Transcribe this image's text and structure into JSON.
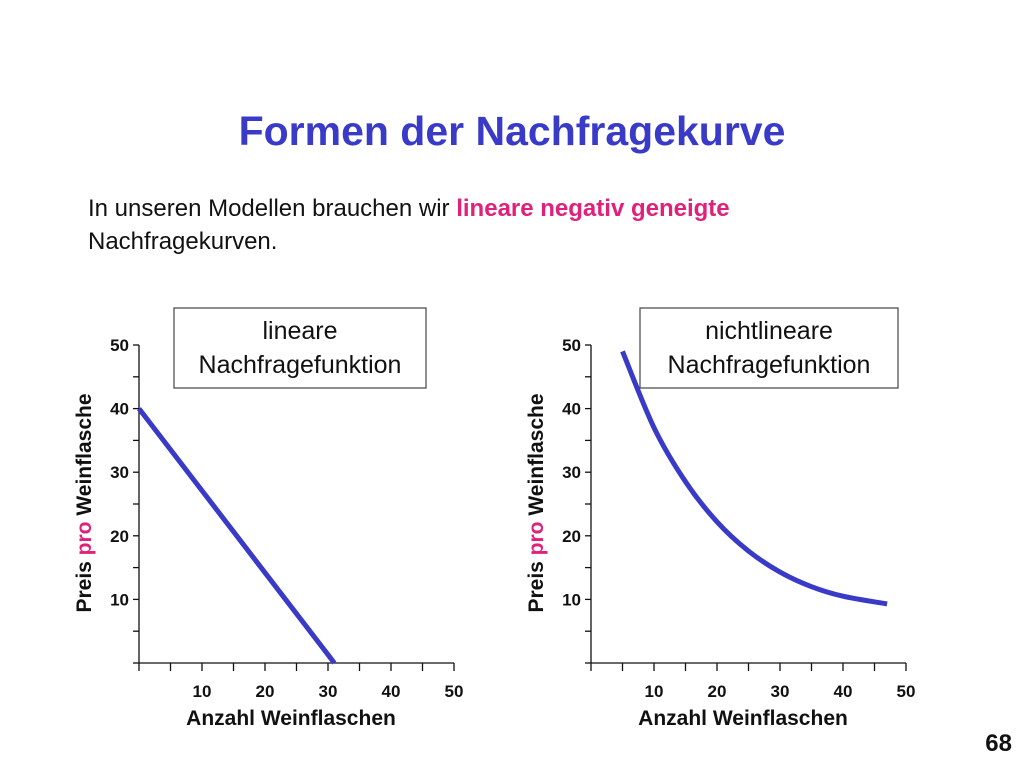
{
  "title": "Formen der Nachfragekurve",
  "intro": {
    "before": "In unseren Modellen brauchen wir ",
    "highlight": "lineare negativ geneigte",
    "after": " Nachfragekurven."
  },
  "slide_number": "68",
  "colors": {
    "title": "#3a3ac8",
    "curve": "#3a3ac8",
    "highlight": "#e0207a"
  },
  "chart_data": [
    {
      "type": "line",
      "box_label": [
        "lineare",
        "Nachfragefunktion"
      ],
      "xlabel": "Anzahl Weinflaschen",
      "ylabel_parts": [
        "Preis ",
        "pro",
        " Weinflasche"
      ],
      "xlim": [
        0,
        50
      ],
      "ylim": [
        0,
        50
      ],
      "xticks": [
        10,
        20,
        30,
        40,
        50
      ],
      "yticks": [
        10,
        20,
        30,
        40,
        50
      ],
      "series": [
        {
          "x": [
            0,
            10,
            20,
            30,
            31
          ],
          "y": [
            40,
            27.1,
            14.2,
            1.3,
            0
          ]
        }
      ]
    },
    {
      "type": "line",
      "box_label": [
        "nichtlineare",
        "Nachfragefunktion"
      ],
      "xlabel": "Anzahl Weinflaschen",
      "ylabel_parts": [
        "Preis ",
        "pro",
        " Weinflasche"
      ],
      "xlim": [
        0,
        50
      ],
      "ylim": [
        0,
        50
      ],
      "xticks": [
        10,
        20,
        30,
        40,
        50
      ],
      "yticks": [
        10,
        20,
        30,
        40,
        50
      ],
      "series": [
        {
          "x": [
            5,
            10,
            15,
            20,
            25,
            30,
            35,
            40,
            47
          ],
          "y": [
            49,
            37,
            28.5,
            22.2,
            17.6,
            14.3,
            12,
            10.5,
            9.3
          ]
        }
      ]
    }
  ]
}
